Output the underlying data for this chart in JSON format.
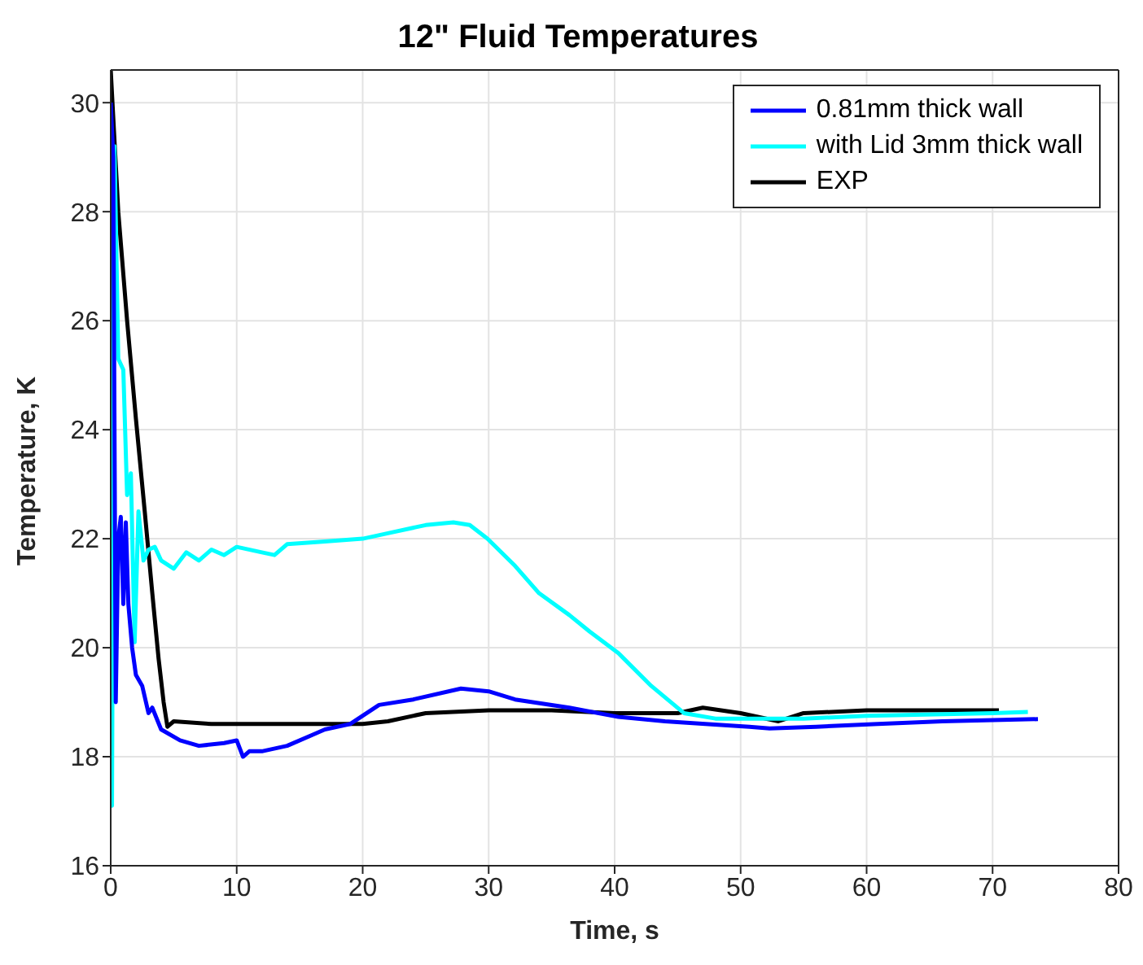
{
  "chart_data": {
    "type": "line",
    "title": "12\" Fluid Temperatures",
    "xlabel": "Time, s",
    "ylabel": "Temperature, K",
    "xlim": [
      0,
      80
    ],
    "xticks": [
      0,
      10,
      20,
      30,
      40,
      50,
      60,
      70,
      80
    ],
    "ylim": [
      16,
      30.6
    ],
    "yticks": [
      16,
      18,
      20,
      22,
      24,
      26,
      28,
      30
    ],
    "grid": true,
    "legend": "top right",
    "marker": "none",
    "line_style": "solid",
    "series": [
      {
        "name": "0.81mm thick wall",
        "color": "#0000ff",
        "x": [
          0,
          0.2,
          0.4,
          0.6,
          0.8,
          1,
          1.2,
          1.4,
          1.7,
          2,
          2.5,
          3,
          3.3,
          4,
          5.5,
          7,
          9,
          10,
          10.5,
          11,
          12,
          14,
          16,
          17,
          19,
          21.3,
          24,
          27.8,
          30,
          32.1,
          36.4,
          40.3,
          44,
          47.2,
          50.7,
          52.3,
          56,
          60.9,
          66,
          73.6
        ],
        "values": [
          30,
          29,
          19,
          22,
          22.4,
          20.8,
          22.3,
          20.8,
          20,
          19.5,
          19.3,
          18.8,
          18.9,
          18.5,
          18.3,
          18.2,
          18.25,
          18.3,
          18,
          18.1,
          18.1,
          18.2,
          18.4,
          18.5,
          18.6,
          18.95,
          19.05,
          19.25,
          19.2,
          19.05,
          18.9,
          18.73,
          18.65,
          18.6,
          18.55,
          18.52,
          18.55,
          18.6,
          18.65,
          18.69
        ]
      },
      {
        "name": "with Lid 3mm thick wall",
        "color": "#00ffff",
        "x": [
          0,
          0.1,
          0.3,
          0.6,
          1,
          1.3,
          1.6,
          1.9,
          2.2,
          2.6,
          3,
          3.5,
          4,
          5,
          6,
          7,
          8,
          9,
          10,
          12,
          13,
          14,
          17,
          20,
          22,
          25,
          27.2,
          28.5,
          29.9,
          32.1,
          34,
          36.4,
          38,
          40.3,
          42.9,
          45.5,
          48,
          50,
          55,
          60,
          70,
          72.8
        ],
        "values": [
          28,
          17.1,
          29.2,
          25.3,
          25.1,
          22.8,
          23.2,
          20.1,
          22.5,
          21.6,
          21.8,
          21.85,
          21.6,
          21.45,
          21.75,
          21.6,
          21.8,
          21.7,
          21.85,
          21.75,
          21.7,
          21.9,
          21.95,
          22,
          22.1,
          22.25,
          22.3,
          22.25,
          22,
          21.5,
          21,
          20.6,
          20.3,
          19.9,
          19.3,
          18.8,
          18.7,
          18.7,
          18.7,
          18.75,
          18.8,
          18.82
        ]
      },
      {
        "name": "EXP",
        "color": "#000000",
        "x": [
          0,
          0.6,
          1.3,
          2,
          2.7,
          3.3,
          3.8,
          4.2,
          4.5,
          5,
          8,
          12,
          16,
          20,
          22,
          25,
          30,
          35,
          40,
          45,
          47,
          50,
          53,
          55,
          60,
          65,
          70.5
        ],
        "values": [
          30.6,
          28,
          26,
          24.2,
          22.5,
          21,
          19.8,
          19,
          18.55,
          18.65,
          18.6,
          18.6,
          18.6,
          18.6,
          18.65,
          18.8,
          18.85,
          18.85,
          18.8,
          18.8,
          18.9,
          18.8,
          18.65,
          18.8,
          18.85,
          18.85,
          18.85
        ]
      }
    ]
  }
}
